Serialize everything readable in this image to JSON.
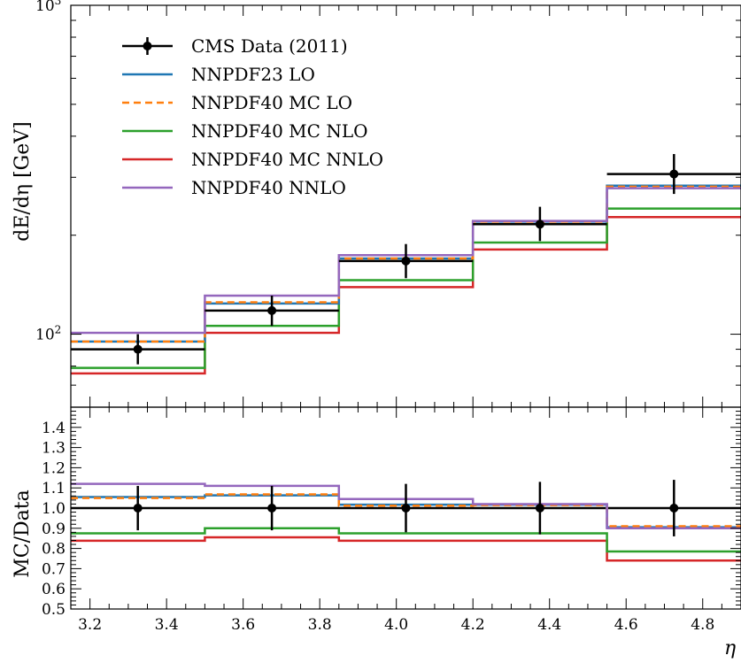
{
  "chart_data": [
    {
      "panel": "main",
      "type": "step",
      "yscale": "log",
      "ylim": [
        60,
        1000
      ],
      "xlim": [
        3.15,
        4.9
      ],
      "ylabel": "dE/dη [GeV]",
      "ytick_labels": [
        "10",
        "10"
      ],
      "ytick_exponents": [
        "3",
        "2"
      ],
      "bin_edges": [
        3.15,
        3.5,
        3.85,
        4.2,
        4.55,
        4.9
      ],
      "data": {
        "name": "CMS Data (2011)",
        "x": [
          3.325,
          3.675,
          4.025,
          4.375,
          4.725
        ],
        "y": [
          90,
          118,
          167,
          216,
          307
        ],
        "yerr_low": [
          9,
          12,
          19,
          24,
          40
        ],
        "yerr_high": [
          10,
          13,
          21,
          28,
          46
        ]
      },
      "series": [
        {
          "name": "NNPDF23 LO",
          "color": "#1f77b4",
          "dashed": false,
          "values": [
            95,
            124,
            170,
            220,
            283
          ]
        },
        {
          "name": "NNPDF40 MC LO",
          "color": "#ff7f0e",
          "dashed": true,
          "values": [
            95,
            125,
            170,
            220,
            281
          ]
        },
        {
          "name": "NNPDF40 MC NLO",
          "color": "#2ca02c",
          "dashed": false,
          "values": [
            79,
            106,
            146,
            190,
            241
          ]
        },
        {
          "name": "NNPDF40 MC NNLO",
          "color": "#d62728",
          "dashed": false,
          "values": [
            76,
            101,
            139,
            181,
            227
          ]
        },
        {
          "name": "NNPDF40 NNLO",
          "color": "#9467bd",
          "dashed": false,
          "values": [
            101,
            131,
            174,
            221,
            278
          ]
        }
      ]
    },
    {
      "panel": "ratio",
      "type": "step",
      "ylim": [
        0.5,
        1.5
      ],
      "xlim": [
        3.15,
        4.9
      ],
      "xlabel": "η",
      "ylabel": "MC/Data",
      "yticks": [
        "0.5",
        "0.6",
        "0.7",
        "0.8",
        "0.9",
        "1.0",
        "1.1",
        "1.2",
        "1.3",
        "1.4"
      ],
      "xticks": [
        "3.2",
        "3.4",
        "3.6",
        "3.8",
        "4.0",
        "4.2",
        "4.4",
        "4.6",
        "4.8"
      ],
      "data": {
        "x": [
          3.325,
          3.675,
          4.025,
          4.375,
          4.725
        ],
        "y": [
          1.0,
          1.0,
          1.0,
          1.0,
          1.0
        ],
        "yerr": [
          0.11,
          0.11,
          0.12,
          0.13,
          0.14
        ]
      },
      "series": [
        {
          "name": "NNPDF23 LO",
          "color": "#1f77b4",
          "dashed": false,
          "values": [
            1.055,
            1.063,
            1.017,
            1.017,
            0.905
          ]
        },
        {
          "name": "NNPDF40 MC LO",
          "color": "#ff7f0e",
          "dashed": true,
          "values": [
            1.05,
            1.068,
            1.012,
            1.015,
            0.91
          ]
        },
        {
          "name": "NNPDF40 MC NLO",
          "color": "#2ca02c",
          "dashed": false,
          "values": [
            0.875,
            0.9,
            0.875,
            0.875,
            0.785
          ]
        },
        {
          "name": "NNPDF40 MC NNLO",
          "color": "#d62728",
          "dashed": false,
          "values": [
            0.838,
            0.855,
            0.838,
            0.838,
            0.74
          ]
        },
        {
          "name": "NNPDF40 NNLO",
          "color": "#9467bd",
          "dashed": false,
          "values": [
            1.12,
            1.11,
            1.045,
            1.02,
            0.9
          ]
        }
      ]
    }
  ]
}
